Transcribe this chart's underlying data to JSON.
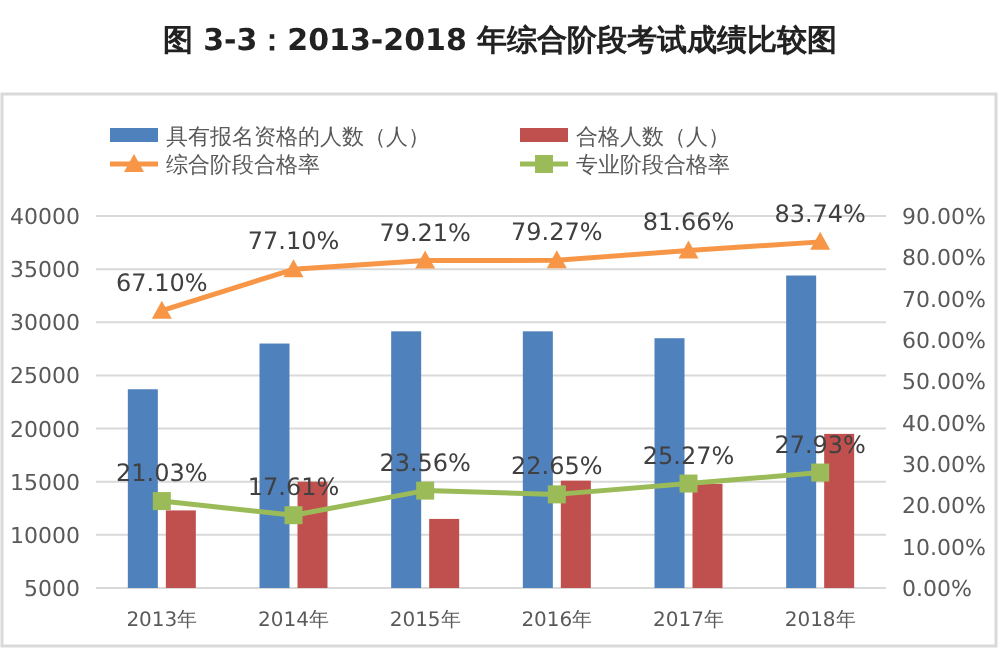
{
  "chart_data": {
    "type": "bar",
    "title": "图 3-3：2013-2018 年综合阶段考试成绩比较图",
    "categories": [
      "2013年",
      "2014年",
      "2015年",
      "2016年",
      "2017年",
      "2018年"
    ],
    "series": [
      {
        "name": "具有报名资格的人数（人）",
        "color": "#4f81bd",
        "values": [
          23700,
          28000,
          29150,
          29150,
          28500,
          34400
        ]
      },
      {
        "name": "合格人数（人）",
        "color": "#c0504d",
        "values": [
          12300,
          15000,
          11500,
          15100,
          14800,
          19500
        ]
      },
      {
        "name": "综合阶段合格率",
        "type": "line",
        "axis": "y2",
        "marker": "triangle",
        "color": "#f79646",
        "values": [
          67.1,
          77.1,
          79.21,
          79.27,
          81.66,
          83.74
        ],
        "value_labels": [
          "67.10%",
          "77.10%",
          "79.21%",
          "79.27%",
          "81.66%",
          "83.74%"
        ]
      },
      {
        "name": "专业阶段合格率",
        "type": "line",
        "axis": "y2",
        "marker": "square",
        "color": "#9bbb59",
        "values": [
          21.03,
          17.61,
          23.56,
          22.65,
          25.27,
          27.93
        ],
        "value_labels": [
          "21.03%",
          "17.61%",
          "23.56%",
          "22.65%",
          "25.27%",
          "27.93%"
        ]
      }
    ],
    "ylim": [
      5000,
      40000
    ],
    "yticks": [
      5000,
      10000,
      15000,
      20000,
      25000,
      30000,
      35000,
      40000
    ],
    "y2lim": [
      0,
      90
    ],
    "y2ticks": [
      {
        "value": 0,
        "label": "0.00%"
      },
      {
        "value": 10,
        "label": "10.00%"
      },
      {
        "value": 20,
        "label": "20.00%"
      },
      {
        "value": 30,
        "label": "30.00%"
      },
      {
        "value": 40,
        "label": "40.00%"
      },
      {
        "value": 50,
        "label": "50.00%"
      },
      {
        "value": 60,
        "label": "60.00%"
      },
      {
        "value": 70,
        "label": "70.00%"
      },
      {
        "value": 80,
        "label": "80.00%"
      },
      {
        "value": 90,
        "label": "90.00%"
      }
    ],
    "grid": "y",
    "legend": "top"
  }
}
